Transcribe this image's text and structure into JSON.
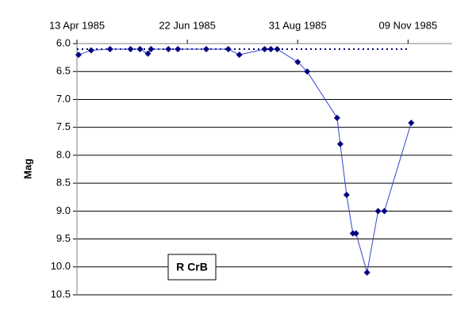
{
  "chart_data": {
    "type": "line",
    "y_label": "Mag",
    "annotation": "R CrB",
    "x": [
      "1985-04-14",
      "1985-04-22",
      "1985-05-04",
      "1985-05-17",
      "1985-05-23",
      "1985-05-28",
      "1985-05-30",
      "1985-06-10",
      "1985-06-16",
      "1985-07-04",
      "1985-07-18",
      "1985-07-25",
      "1985-08-10",
      "1985-08-14",
      "1985-08-18",
      "1985-08-31",
      "1985-09-06",
      "1985-09-25",
      "1985-09-27",
      "1985-10-01",
      "1985-10-05",
      "1985-10-07",
      "1985-10-14",
      "1985-10-21",
      "1985-10-25",
      "1985-11-11"
    ],
    "values": [
      6.2,
      6.12,
      6.1,
      6.1,
      6.1,
      6.18,
      6.1,
      6.1,
      6.1,
      6.1,
      6.1,
      6.2,
      6.1,
      6.1,
      6.1,
      6.33,
      6.5,
      7.33,
      7.8,
      8.71,
      9.4,
      9.4,
      10.1,
      9.0,
      9.0,
      7.42
    ],
    "color": "#000080",
    "line_color": "#3344cc",
    "reference_line": {
      "x": [
        "1985-04-13",
        "1985-11-09"
      ],
      "values": [
        6.1,
        6.1
      ],
      "color": "#000080",
      "style": "dotted"
    },
    "xlim": [
      "1985-04-13",
      "1985-12-07"
    ],
    "xticks": [
      {
        "value": "1985-04-13",
        "label": "13 Apr 1985"
      },
      {
        "value": "1985-06-22",
        "label": "22 Jun 1985"
      },
      {
        "value": "1985-08-31",
        "label": "31 Aug 1985"
      },
      {
        "value": "1985-11-09",
        "label": "09 Nov 1985"
      }
    ],
    "x_axis_position": "top",
    "ylim": [
      6,
      10.5
    ],
    "y_inverted": true,
    "yticks": [
      {
        "value": 6,
        "label": "6.0"
      },
      6.5,
      {
        "value": 7,
        "label": "7.0"
      },
      7.5,
      {
        "value": 8,
        "label": "8.0"
      },
      8.5,
      {
        "value": 9,
        "label": "9.0"
      },
      9.5,
      {
        "value": 10,
        "label": "10.0"
      },
      10.5
    ],
    "grid": true
  }
}
